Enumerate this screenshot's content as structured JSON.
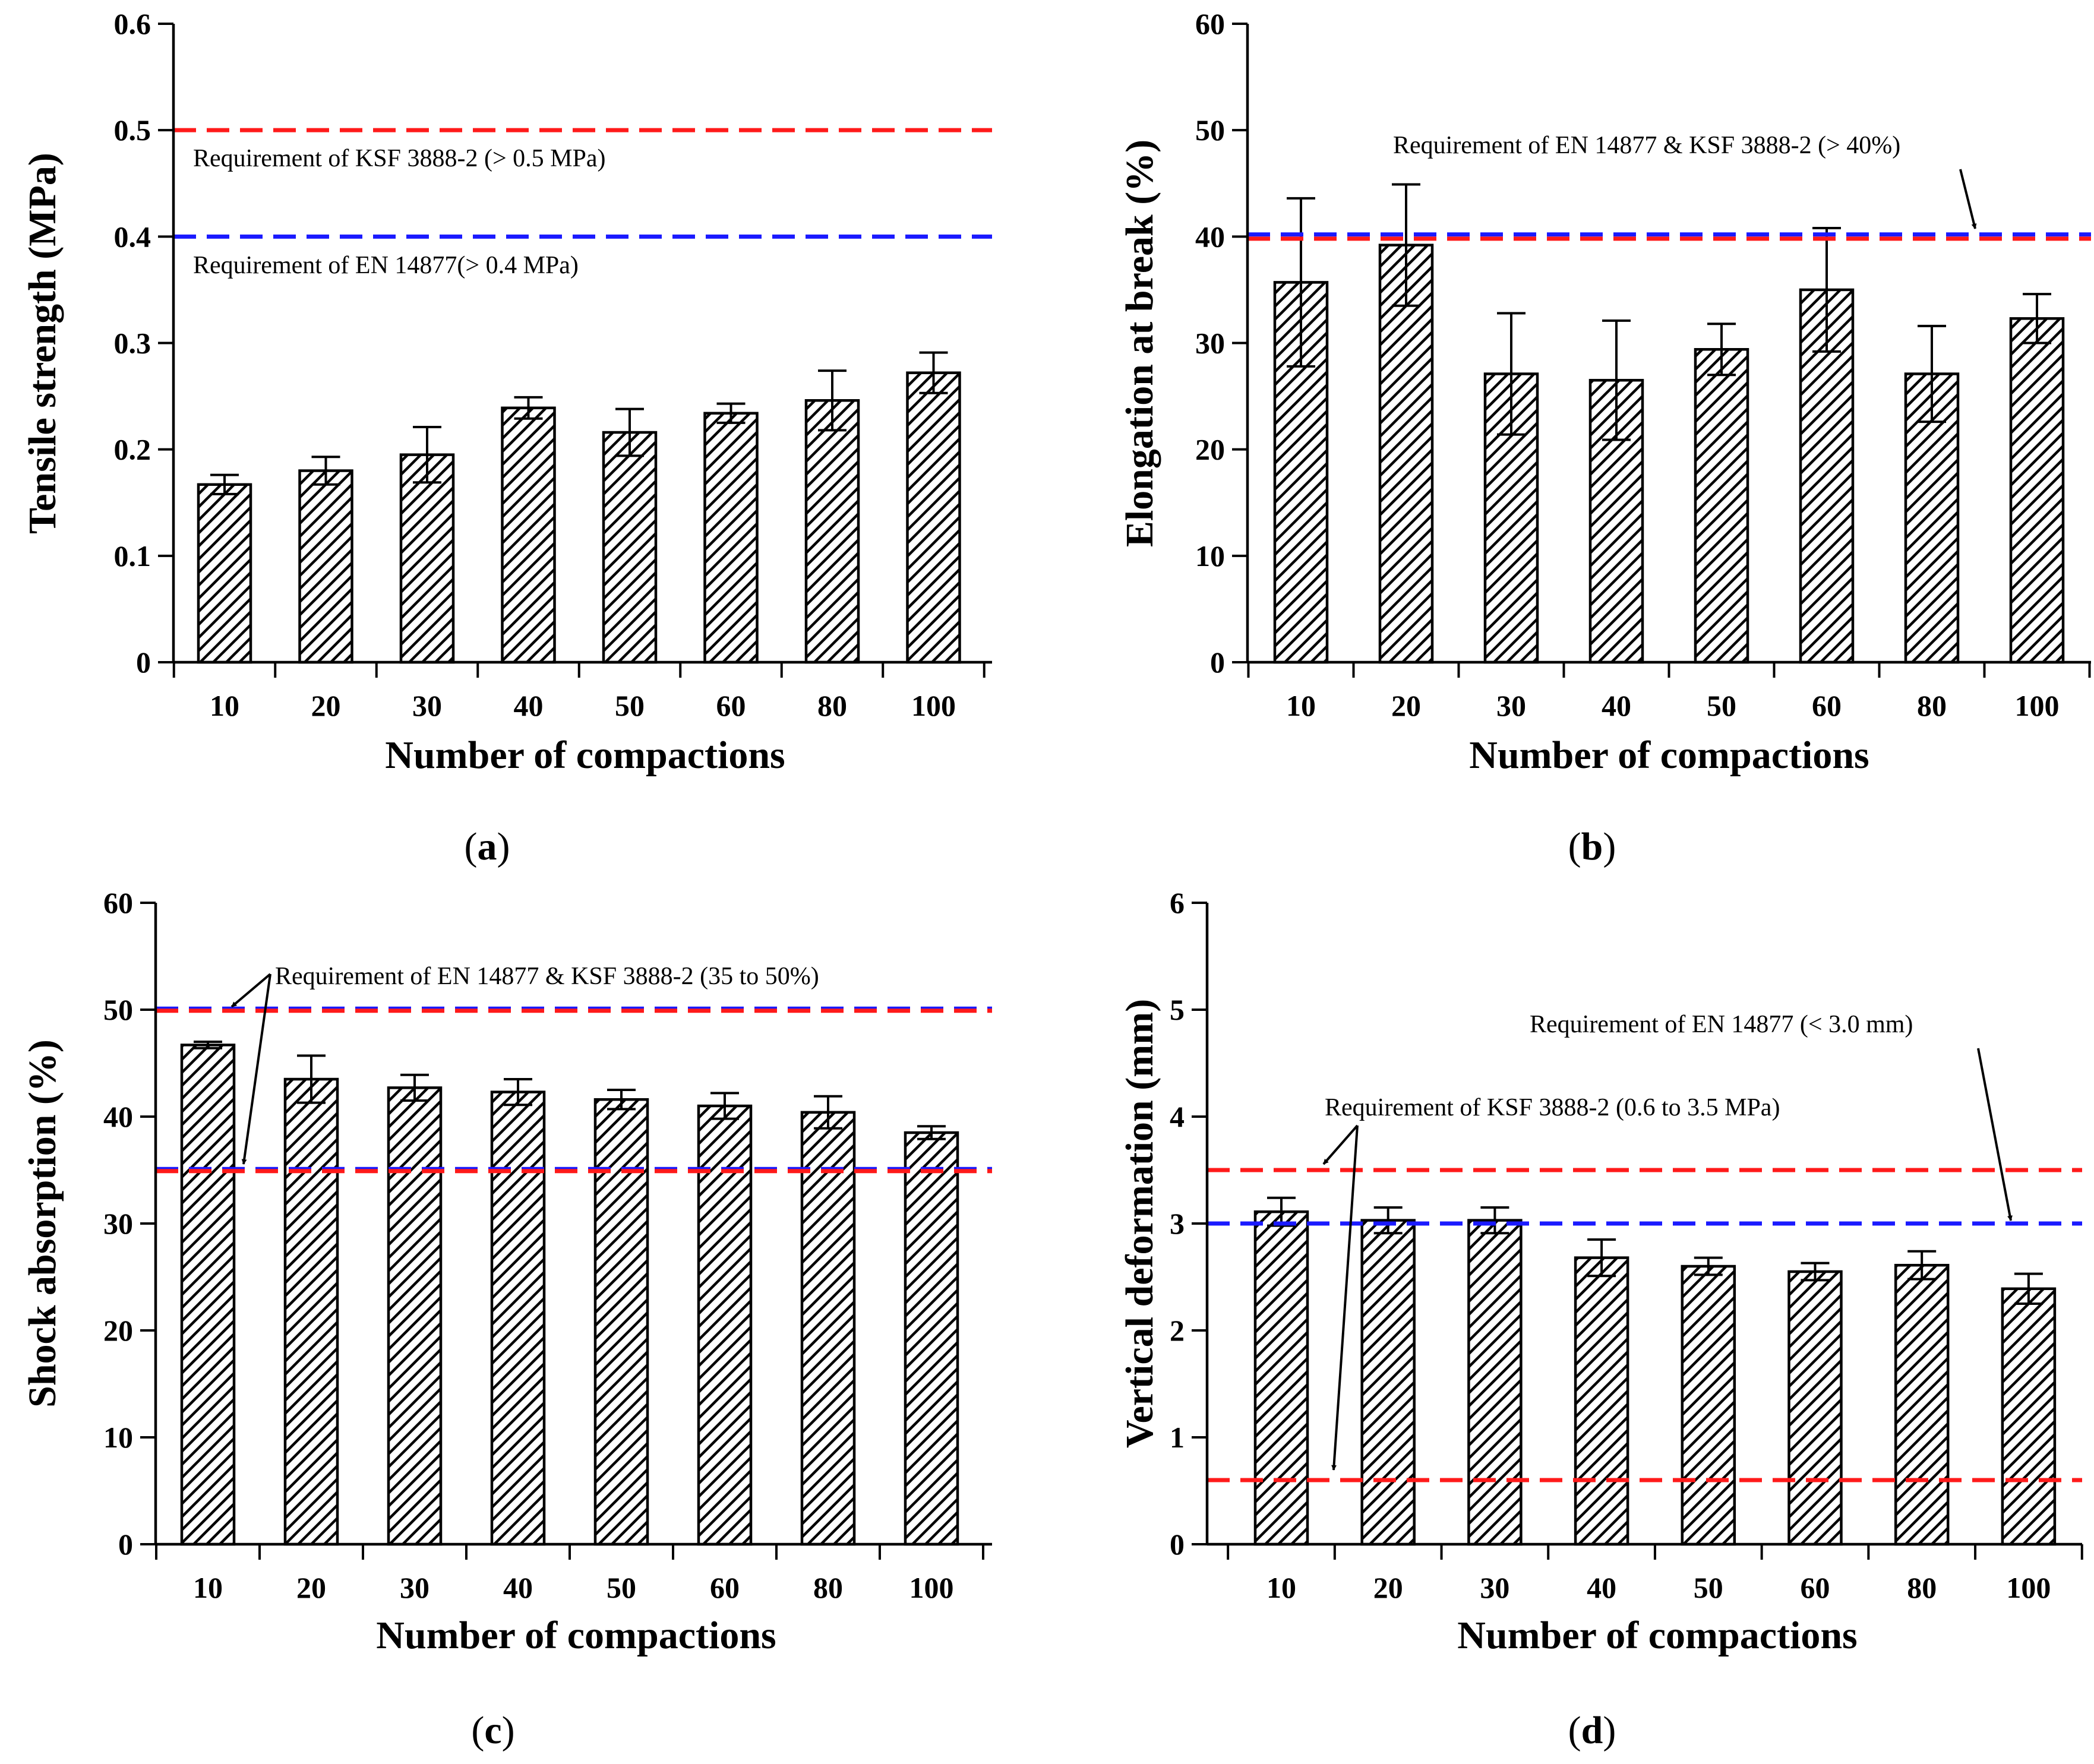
{
  "chart_data": [
    {
      "type": "bar",
      "panel": "a",
      "categories": [
        "10",
        "20",
        "30",
        "40",
        "50",
        "60",
        "80",
        "100"
      ],
      "values": [
        0.167,
        0.18,
        0.195,
        0.239,
        0.216,
        0.234,
        0.246,
        0.272
      ],
      "errors": [
        0.009,
        0.013,
        0.026,
        0.01,
        0.022,
        0.009,
        0.028,
        0.019
      ],
      "xlabel": "Number of compactions",
      "ylabel": "Tensile strength (MPa)",
      "ylim": [
        0,
        0.6
      ],
      "yticks": [
        "0",
        "0.1",
        "0.2",
        "0.3",
        "0.4",
        "0.5",
        "0.6"
      ],
      "reference_lines": [
        {
          "value": 0.5,
          "color": "#ff1a1a",
          "label": "Requirement of KSF 3888-2 (> 0.5 MPa)"
        },
        {
          "value": 0.4,
          "color": "#1a1aff",
          "label": "Requirement of EN 14877(> 0.4 MPa)"
        }
      ]
    },
    {
      "type": "bar",
      "panel": "b",
      "categories": [
        "10",
        "20",
        "30",
        "40",
        "50",
        "60",
        "80",
        "100"
      ],
      "values": [
        35.7,
        39.2,
        27.1,
        26.5,
        29.4,
        35.0,
        27.1,
        32.3
      ],
      "errors": [
        7.9,
        5.7,
        5.7,
        5.6,
        2.4,
        5.8,
        4.5,
        2.3
      ],
      "xlabel": "Number of compactions",
      "ylabel": "Elongation at break (%)",
      "ylim": [
        0,
        60
      ],
      "yticks": [
        "0",
        "10",
        "20",
        "30",
        "40",
        "50",
        "60"
      ],
      "reference_lines": [
        {
          "value": 40.2,
          "color": "#1a1aff",
          "label": ""
        },
        {
          "value": 39.8,
          "color": "#ff1a1a",
          "label": ""
        }
      ],
      "annotation": "Requirement of EN 14877 & KSF 3888-2 (> 40%)"
    },
    {
      "type": "bar",
      "panel": "c",
      "categories": [
        "10",
        "20",
        "30",
        "40",
        "50",
        "60",
        "80",
        "100"
      ],
      "values": [
        46.7,
        43.5,
        42.7,
        42.3,
        41.6,
        41.0,
        40.4,
        38.5
      ],
      "errors": [
        0.3,
        2.2,
        1.2,
        1.2,
        0.9,
        1.2,
        1.5,
        0.6
      ],
      "xlabel": "Number of compactions",
      "ylabel": "Shock absorption (%)",
      "ylim": [
        0,
        60
      ],
      "yticks": [
        "0",
        "10",
        "20",
        "30",
        "40",
        "50",
        "60"
      ],
      "reference_lines": [
        {
          "value": 50.1,
          "color": "#1a1aff",
          "label": ""
        },
        {
          "value": 49.9,
          "color": "#ff1a1a",
          "label": ""
        },
        {
          "value": 35.1,
          "color": "#1a1aff",
          "label": ""
        },
        {
          "value": 34.9,
          "color": "#ff1a1a",
          "label": ""
        }
      ],
      "annotation": "Requirement of EN 14877  & KSF 3888-2 (35 to 50%)"
    },
    {
      "type": "bar",
      "panel": "d",
      "categories": [
        "10",
        "20",
        "30",
        "40",
        "50",
        "60",
        "80",
        "100"
      ],
      "values": [
        3.11,
        3.03,
        3.03,
        2.68,
        2.6,
        2.55,
        2.61,
        2.39
      ],
      "errors": [
        0.13,
        0.12,
        0.12,
        0.17,
        0.08,
        0.08,
        0.13,
        0.14
      ],
      "xlabel": "Number of compactions",
      "ylabel": "Vertical deformation (mm)",
      "ylim": [
        0,
        6
      ],
      "yticks": [
        "0",
        "1",
        "2",
        "3",
        "4",
        "5",
        "6"
      ],
      "reference_lines": [
        {
          "value": 3.5,
          "color": "#ff1a1a",
          "label": ""
        },
        {
          "value": 3.0,
          "color": "#1a1aff",
          "label": ""
        },
        {
          "value": 0.6,
          "color": "#ff1a1a",
          "label": ""
        }
      ],
      "annotations": [
        "Requirement of EN 14877 (< 3.0 mm)",
        "Requirement of KSF 3888-2 (0.6 to 3.5 MPa)"
      ]
    }
  ],
  "panel_labels": [
    "a",
    "b",
    "c",
    "d"
  ],
  "colors": {
    "red": "#ff1a1a",
    "blue": "#1a1aff",
    "axis": "#000000",
    "bar_fill": "#ffffff"
  }
}
